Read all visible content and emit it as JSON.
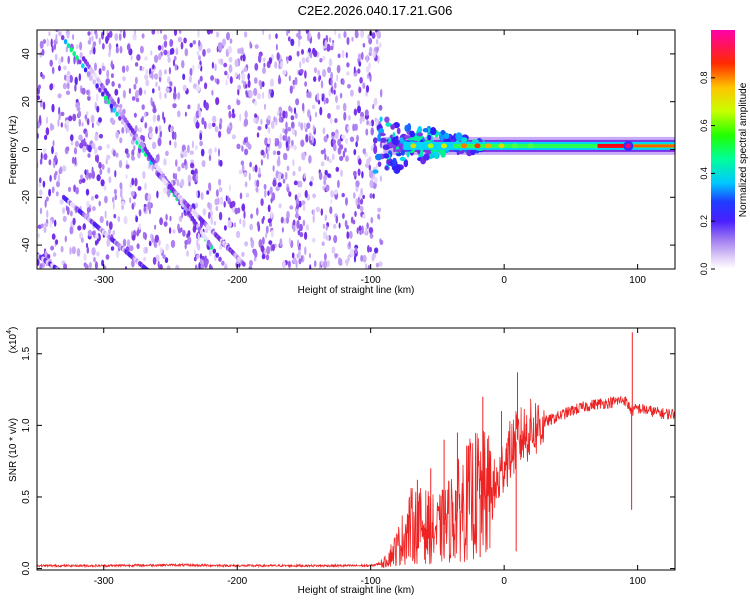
{
  "title": "C2E2.2026.040.17.21.G06",
  "chart_data": [
    {
      "type": "heatmap",
      "title": "C2E2.2026.040.17.21.G06",
      "xlabel": "Height of straight line (km)",
      "ylabel": "Frequency (Hz)",
      "xlim": [
        -350,
        128
      ],
      "ylim": [
        -50,
        50
      ],
      "xticks": [
        -300,
        -200,
        -100,
        0,
        100
      ],
      "yticks": [
        -40,
        -20,
        0,
        20,
        40
      ],
      "colorbar": {
        "label": "Normalized spectral amplitude",
        "range": [
          0,
          1
        ],
        "ticks": [
          "0.0",
          "0.2",
          "0.4",
          "0.6",
          "0.8"
        ],
        "colors": [
          "#ffffff",
          "#b58cf2",
          "#7a2fe6",
          "#2a1aff",
          "#00d4ff",
          "#00ff66",
          "#c8ff00",
          "#ff9900",
          "#ff0000",
          "#ff00cc"
        ]
      },
      "noise_region_x": [
        -350,
        -92
      ],
      "signal_line": {
        "freq_hz": 1.5,
        "x_start": -98,
        "x_end": 128
      },
      "diagonal_streaks": [
        {
          "x": [
            -350,
            -200
          ],
          "y": [
            62,
            -56
          ],
          "peak": 0.55
        },
        {
          "x": [
            -330,
            -260
          ],
          "y": [
            -20,
            -54
          ],
          "peak": 0.3
        },
        {
          "x": [
            -315,
            -220
          ],
          "y": [
            38,
            -40
          ],
          "peak": 0.25
        },
        {
          "x": [
            -260,
            -195
          ],
          "y": [
            -10,
            -48
          ],
          "peak": 0.25
        },
        {
          "x": [
            -350,
            -330
          ],
          "y": [
            -44,
            -52
          ],
          "peak": 0.3
        }
      ]
    },
    {
      "type": "line",
      "xlabel": "Height of straight line (km)",
      "ylabel": "SNR (10 * v/v)",
      "exponent_label": "(x10",
      "exponent_power": "4",
      "exponent_close": ")",
      "xlim": [
        -350,
        128
      ],
      "ylim": [
        -0.01,
        1.68
      ],
      "xticks": [
        -300,
        -200,
        -100,
        0,
        100
      ],
      "yticks": [
        0.0,
        0.5,
        1.0,
        1.5
      ],
      "yticklabels": [
        "0.0",
        "0.5",
        "1.0",
        "1.5"
      ],
      "line_color": "#ee2222",
      "series": [
        {
          "name": "SNR",
          "x": [
            -350,
            -300,
            -250,
            -200,
            -150,
            -110,
            -100,
            -90,
            -80,
            -70,
            -60,
            -50,
            -40,
            -30,
            -20,
            -12,
            -5,
            0,
            10,
            20,
            30,
            40,
            50,
            60,
            70,
            80,
            90,
            96,
            100,
            110,
            120,
            128
          ],
          "y": [
            0.02,
            0.02,
            0.025,
            0.02,
            0.02,
            0.02,
            0.02,
            0.04,
            0.15,
            0.3,
            0.3,
            0.26,
            0.35,
            0.45,
            0.52,
            0.5,
            0.58,
            0.75,
            0.9,
            0.97,
            1.02,
            1.06,
            1.1,
            1.13,
            1.15,
            1.16,
            1.18,
            1.1,
            1.12,
            1.1,
            1.08,
            1.08
          ]
        }
      ],
      "spikes": [
        {
          "x": 96,
          "y": 1.65
        },
        {
          "x": 95.5,
          "y": 0.41
        },
        {
          "x": 10,
          "y": 1.37
        },
        {
          "x": 9,
          "y": 0.12
        },
        {
          "x": -2,
          "y": 1.1
        },
        {
          "x": -16,
          "y": 1.2
        },
        {
          "x": -18,
          "y": 0.08
        },
        {
          "x": -35,
          "y": 0.95
        },
        {
          "x": -45,
          "y": 0.9
        },
        {
          "x": -55,
          "y": 0.7
        },
        {
          "x": -65,
          "y": 0.62
        }
      ]
    }
  ]
}
